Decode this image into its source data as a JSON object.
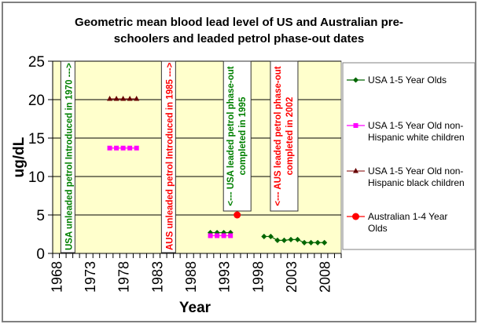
{
  "chart_data": {
    "type": "line",
    "title": "Geometric mean blood lead level of US and Australian pre-schoolers and leaded petrol phase-out dates",
    "title_lines": [
      "Geometric mean blood lead level of US and Australian pre-",
      "schoolers and leaded petrol phase-out dates"
    ],
    "xlabel": "Year",
    "ylabel": "ug/dL",
    "xlim": [
      1968,
      2010
    ],
    "ylim": [
      0,
      25
    ],
    "yticks": [
      0,
      5,
      10,
      15,
      20,
      25
    ],
    "xtick_labels": [
      "1968",
      "1973",
      "1978",
      "1983",
      "1988",
      "1993",
      "1998",
      "2003",
      "2008"
    ],
    "grid": "horizontal",
    "plot_background": "#ffffcc",
    "legend_position": "right",
    "series": [
      {
        "name": "USA 1-5 Year Olds",
        "color": "#006600",
        "marker": "diamond",
        "x": [
          1991,
          1992,
          1993,
          1994,
          1999,
          2000,
          2001,
          2002,
          2003,
          2004,
          2005,
          2006,
          2007,
          2008
        ],
        "y": [
          2.7,
          2.7,
          2.7,
          2.7,
          2.2,
          2.2,
          1.7,
          1.7,
          1.8,
          1.8,
          1.4,
          1.4,
          1.4,
          1.4
        ],
        "segments": [
          [
            1991,
            1994
          ],
          [
            1999,
            2008
          ]
        ]
      },
      {
        "name": "USA 1-5 Year Old non-Hispanic white children",
        "color": "#ff00ff",
        "marker": "square",
        "x": [
          1976,
          1977,
          1978,
          1979,
          1980,
          1991,
          1992,
          1993,
          1994
        ],
        "y": [
          13.7,
          13.7,
          13.7,
          13.7,
          13.7,
          2.3,
          2.3,
          2.3,
          2.3
        ],
        "segments": [
          [
            1976,
            1980
          ],
          [
            1991,
            1994
          ]
        ]
      },
      {
        "name": "USA 1-5 Year Old non-Hispanic black children",
        "color": "#660000",
        "line_color": "#993333",
        "marker": "triangle",
        "x": [
          1976,
          1977,
          1978,
          1979,
          1980
        ],
        "y": [
          20.1,
          20.1,
          20.1,
          20.1,
          20.1
        ],
        "segments": [
          [
            1976,
            1980
          ]
        ]
      },
      {
        "name": "Australian 1-4 Year Olds",
        "color": "#ff0000",
        "marker": "circle",
        "x": [
          1995
        ],
        "y": [
          5.0
        ],
        "segments": []
      }
    ],
    "legend_lines": [
      [
        "USA 1-5 Year Olds"
      ],
      [
        "USA 1-5 Year Old non-",
        "Hispanic white children"
      ],
      [
        "USA 1-5 Year Old non-",
        "Hispanic black children"
      ],
      [
        "Australian 1-4 Year",
        "Olds"
      ]
    ],
    "annotations": [
      {
        "year": 1970,
        "lines": [
          "USA unleaded petrol Introduced in 1970 --->"
        ],
        "color": "#008000",
        "full_height": true
      },
      {
        "year": 1985,
        "lines": [
          "AUS unleaded petrol Introduced in 1985 --->"
        ],
        "color": "#ff0000",
        "full_height": true
      },
      {
        "year": 1995,
        "lines": [
          "<--- USA leaded petrol phase-out",
          "completed in 1995"
        ],
        "color": "#008000",
        "full_height": false
      },
      {
        "year": 2002,
        "lines": [
          "<--- AUS leaded petrol phase-out",
          "completed in 2002"
        ],
        "color": "#ff0000",
        "full_height": false
      }
    ]
  }
}
